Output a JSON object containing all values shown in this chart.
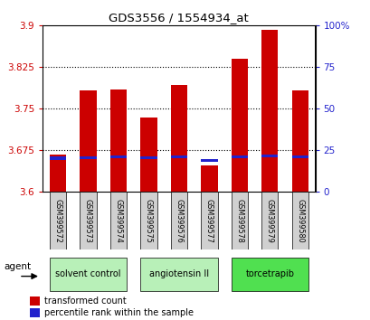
{
  "title": "GDS3556 / 1554934_at",
  "samples": [
    "GSM399572",
    "GSM399573",
    "GSM399574",
    "GSM399575",
    "GSM399576",
    "GSM399577",
    "GSM399578",
    "GSM399579",
    "GSM399580"
  ],
  "bar_base": 3.6,
  "red_values": [
    3.668,
    3.783,
    3.784,
    3.735,
    3.793,
    3.648,
    3.84,
    3.893,
    3.783
  ],
  "blue_values": [
    3.661,
    3.662,
    3.664,
    3.662,
    3.663,
    3.657,
    3.664,
    3.665,
    3.663
  ],
  "bar_width": 0.55,
  "bar_color": "#cc0000",
  "blue_color": "#2222cc",
  "ylim_left": [
    3.6,
    3.9
  ],
  "ylim_right": [
    0,
    100
  ],
  "yticks_left": [
    3.6,
    3.675,
    3.75,
    3.825,
    3.9
  ],
  "yticks_right": [
    0,
    25,
    50,
    75,
    100
  ],
  "ytick_labels_left": [
    "3.6",
    "3.675",
    "3.75",
    "3.825",
    "3.9"
  ],
  "ytick_labels_right": [
    "0",
    "25",
    "50",
    "75",
    "100%"
  ],
  "groups": [
    {
      "label": "solvent control",
      "indices": [
        0,
        1,
        2
      ],
      "color": "#b8f0b8"
    },
    {
      "label": "angiotensin II",
      "indices": [
        3,
        4,
        5
      ],
      "color": "#b8f0b8"
    },
    {
      "label": "torcetrapib",
      "indices": [
        6,
        7,
        8
      ],
      "color": "#50e050"
    }
  ],
  "agent_label": "agent",
  "legend_items": [
    {
      "label": "transformed count",
      "color": "#cc0000"
    },
    {
      "label": "percentile rank within the sample",
      "color": "#2222cc"
    }
  ],
  "grid_color": "#000000",
  "left_tick_color": "#cc0000",
  "right_tick_color": "#2222cc",
  "plot_bg_color": "#ffffff",
  "sample_box_color": "#d0d0d0"
}
